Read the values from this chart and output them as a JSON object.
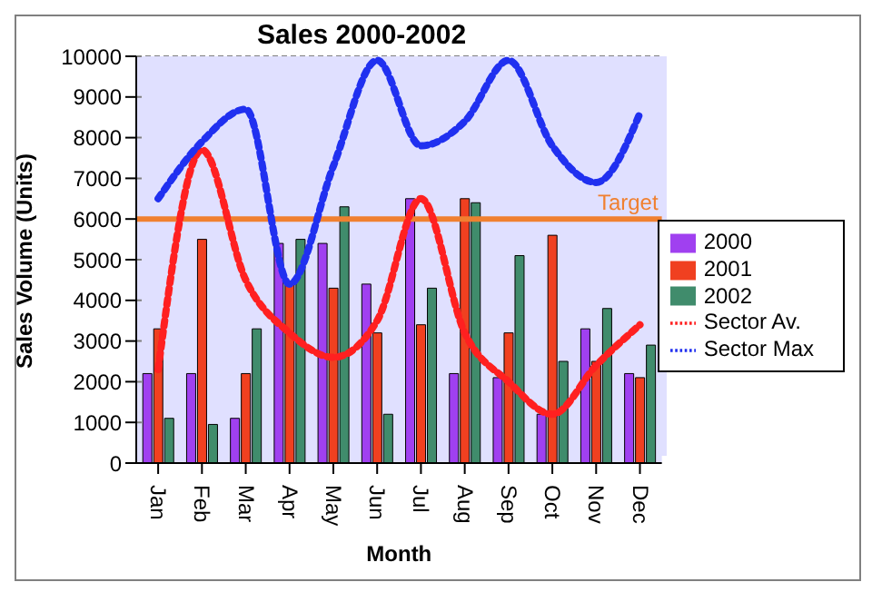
{
  "chart_data": {
    "type": "bar",
    "title": "Sales 2000-2002",
    "xlabel": "Month",
    "ylabel": "Sales Volume (Units)",
    "categories": [
      "Jan",
      "Feb",
      "Mar",
      "Apr",
      "May",
      "Jun",
      "Jul",
      "Aug",
      "Sep",
      "Oct",
      "Nov",
      "Dec"
    ],
    "series": [
      {
        "name": "2000",
        "color": "#a040f0",
        "values": [
          2200,
          2200,
          1100,
          5400,
          5400,
          4400,
          6500,
          2200,
          2100,
          1200,
          3300,
          2200
        ]
      },
      {
        "name": "2001",
        "color": "#f04020",
        "values": [
          3300,
          5500,
          2200,
          4400,
          4300,
          3200,
          3400,
          6500,
          3200,
          5600,
          2500,
          2100
        ]
      },
      {
        "name": "2002",
        "color": "#408c6c",
        "values": [
          1100,
          950,
          3300,
          5500,
          6300,
          1200,
          4300,
          6400,
          5100,
          2500,
          3800,
          2900
        ]
      },
      {
        "name": "Sector Av.",
        "type": "line",
        "color": "#ff2020",
        "line_style": "dotted",
        "values": [
          2300,
          7700,
          4500,
          3200,
          2600,
          3500,
          6500,
          3200,
          2000,
          1200,
          2400,
          3400
        ]
      },
      {
        "name": "Sector Max",
        "type": "line",
        "color": "#2030f0",
        "line_style": "dotted",
        "values": [
          6500,
          7900,
          8700,
          4400,
          7300,
          9900,
          7800,
          8400,
          9900,
          7800,
          6900,
          8600
        ]
      }
    ],
    "ylim": [
      0,
      10000
    ],
    "yticks": [
      0,
      1000,
      2000,
      3000,
      4000,
      5000,
      6000,
      7000,
      8000,
      9000,
      10000
    ],
    "grid": "y",
    "legend": "right",
    "marker": "none",
    "ref_lines": [
      {
        "axis": "y",
        "value": 6000,
        "label": "Target",
        "color": "#f08030"
      }
    ]
  }
}
